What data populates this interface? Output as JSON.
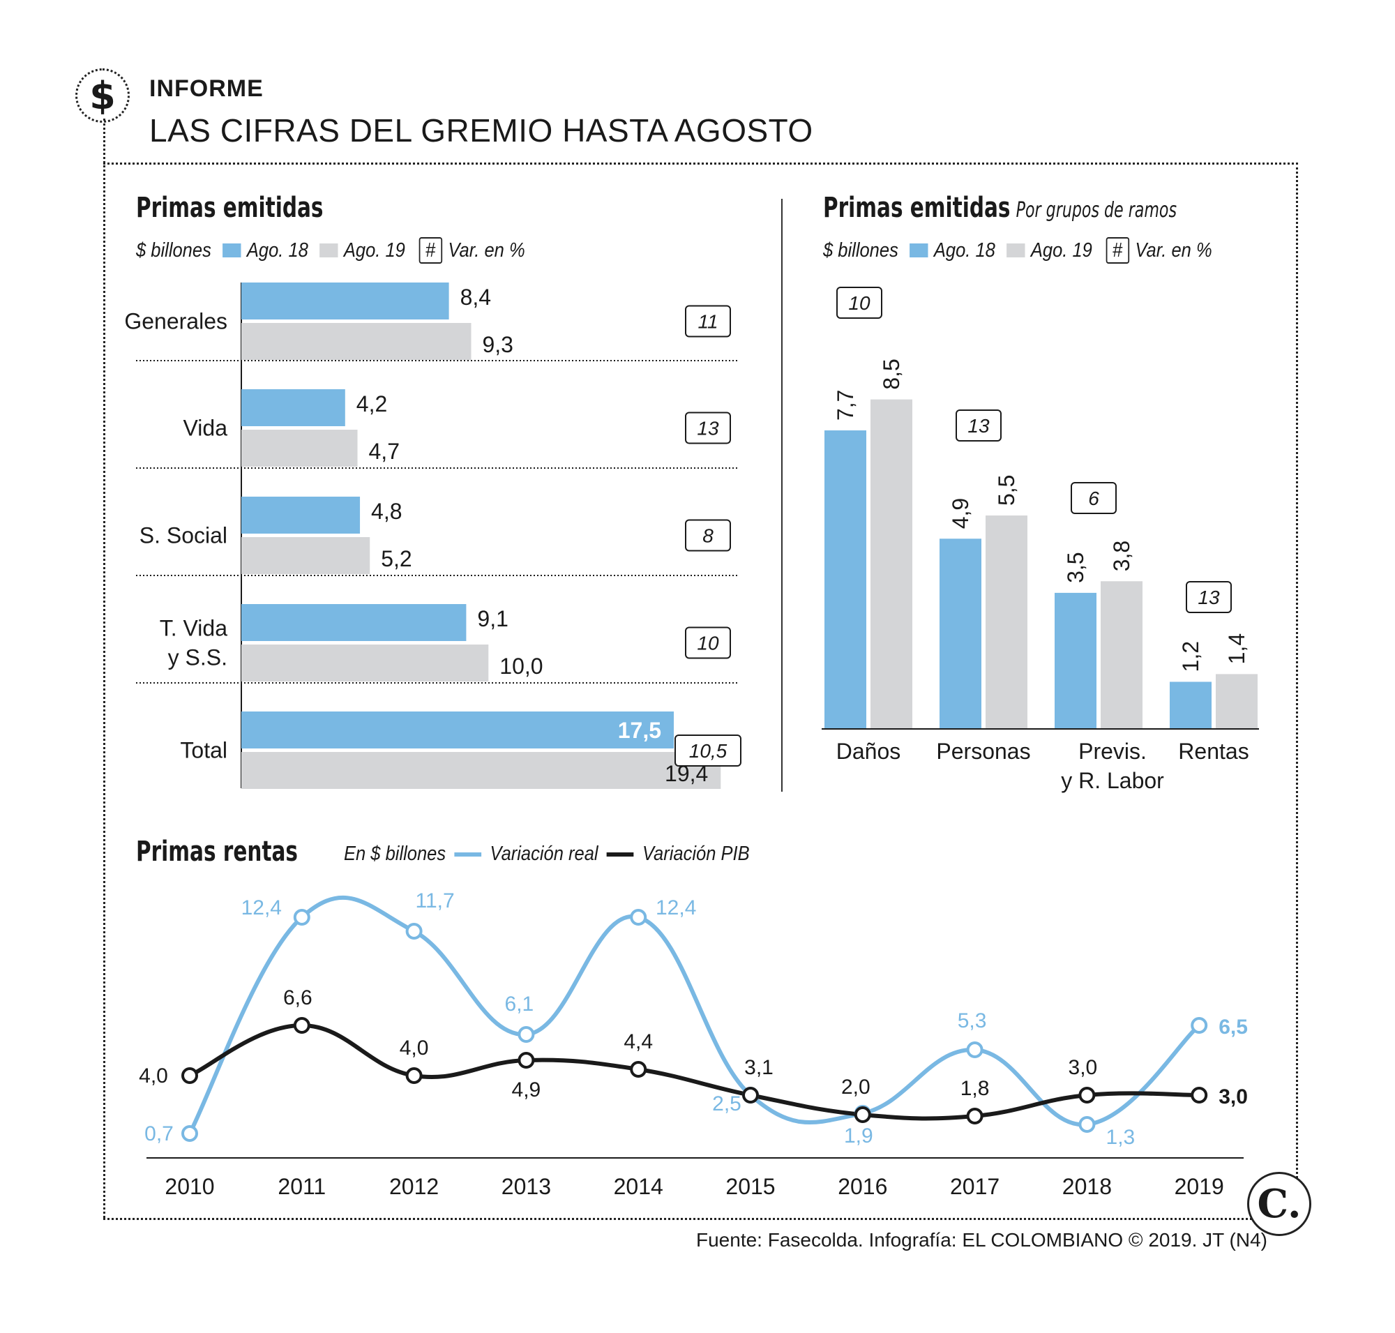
{
  "header": {
    "kicker": "INFORME",
    "headline": "LAS CIFRAS DEL GREMIO HASTA AGOSTO",
    "icon": "dollar-icon",
    "icon_glyph": "$"
  },
  "colors": {
    "ago18": "#79b8e3",
    "ago19": "#d4d5d7",
    "real": "#79b8e3",
    "pib": "#1a1a1a"
  },
  "legend": {
    "unit": "$ billones",
    "ago18": "Ago. 18",
    "ago19": "Ago. 19",
    "hash": "#",
    "var": "Var. en %"
  },
  "chart_data": [
    {
      "type": "bar",
      "orientation": "horizontal",
      "title": "Primas emitidas",
      "unit": "$ billones",
      "categories": [
        "Generales",
        "Vida",
        "S. Social",
        "T. Vida y S.S.",
        "Total"
      ],
      "category_lines": [
        [
          "Generales"
        ],
        [
          "Vida"
        ],
        [
          "S. Social"
        ],
        [
          "T. Vida",
          "y S.S."
        ],
        [
          "Total"
        ]
      ],
      "series": [
        {
          "name": "Ago. 18",
          "values": [
            8.4,
            4.2,
            4.8,
            9.1,
            17.5
          ],
          "labels": [
            "8,4",
            "4,2",
            "4,8",
            "9,1",
            "17,5"
          ]
        },
        {
          "name": "Ago. 19",
          "values": [
            9.3,
            4.7,
            5.2,
            10.0,
            19.4
          ],
          "labels": [
            "9,3",
            "4,7",
            "5,2",
            "10,0",
            "19,4"
          ]
        }
      ],
      "variation_pct": [
        "11",
        "13",
        "8",
        "10",
        "10,5"
      ],
      "xlim": [
        0,
        20
      ]
    },
    {
      "type": "bar",
      "orientation": "vertical",
      "title": "Primas emitidas",
      "subtitle": "Por grupos de ramos",
      "unit": "$ billones",
      "categories": [
        "Daños",
        "Personas",
        "Previs. y R. Labor",
        "Rentas"
      ],
      "category_lines": [
        [
          "Daños"
        ],
        [
          "Personas"
        ],
        [
          "Previs.",
          "y R. Labor"
        ],
        [
          "Rentas"
        ]
      ],
      "series": [
        {
          "name": "Ago. 18",
          "values": [
            7.7,
            4.9,
            3.5,
            1.2
          ],
          "labels": [
            "7,7",
            "4,9",
            "3,5",
            "1,2"
          ]
        },
        {
          "name": "Ago. 19",
          "values": [
            8.5,
            5.5,
            3.8,
            1.4
          ],
          "labels": [
            "8,5",
            "5,5",
            "3,8",
            "1,4"
          ]
        }
      ],
      "variation_pct": [
        "10",
        "13",
        "6",
        "13"
      ],
      "ylim": [
        0,
        10
      ]
    },
    {
      "type": "line",
      "title": "Primas rentas",
      "legend_unit": "En $ billones",
      "x": [
        "2010",
        "2011",
        "2012",
        "2013",
        "2014",
        "2015",
        "2016",
        "2017",
        "2018",
        "2019"
      ],
      "series": [
        {
          "name": "Variación real",
          "values": [
            0.7,
            12.4,
            11.7,
            6.1,
            12.4,
            2.5,
            1.9,
            5.3,
            1.3,
            6.5
          ],
          "labels": [
            "0,7",
            "12,4",
            "11,7",
            "6,1",
            "12,4",
            "2,5",
            "1,9",
            "5,3",
            "1,3",
            "6,5"
          ]
        },
        {
          "name": "Variación PIB",
          "values": [
            4.0,
            6.6,
            4.0,
            4.9,
            4.4,
            3.1,
            2.0,
            1.8,
            3.0,
            3.0
          ],
          "labels": [
            "4,0",
            "6,6",
            "4,0",
            "4,9",
            "4,4",
            "3,1",
            "2,0",
            "1,8",
            "3,0",
            "3,0"
          ]
        }
      ],
      "ylim": [
        0,
        13.5
      ]
    }
  ],
  "footer": {
    "source": "Fuente: Fasecolda. Infografía: EL COLOMBIANO © 2019. JT (N4)",
    "logo": "C."
  }
}
